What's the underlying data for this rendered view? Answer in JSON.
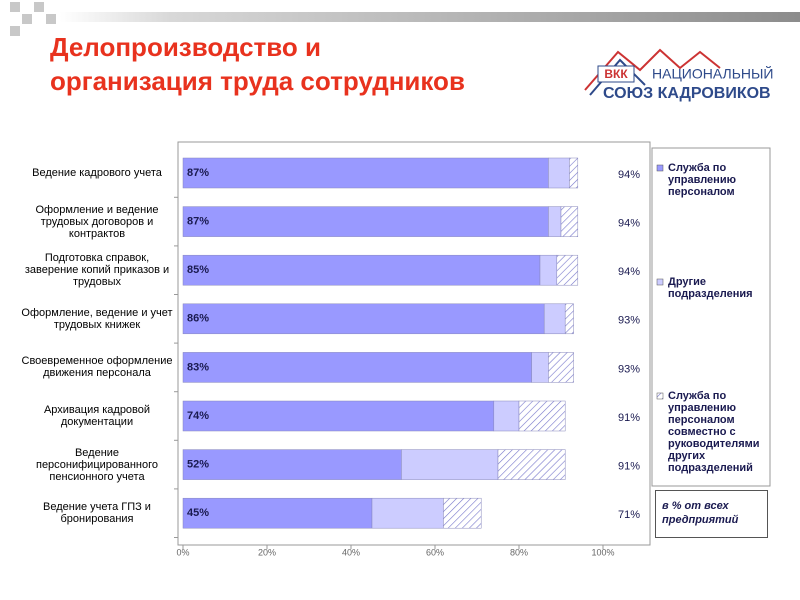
{
  "header": {
    "title": "Делопроизводство и\nорганизация труда сотрудников",
    "logo_abbr": "ВКК",
    "logo_line1": "НАЦИОНАЛЬНЫЙ",
    "logo_line2": "СОЮЗ КАДРОВИКОВ"
  },
  "chart_data": {
    "type": "stacked_bar",
    "orientation": "horizontal",
    "categories": [
      "Ведение кадрового учета",
      "Оформление и ведение трудовых договоров и контрактов",
      "Подготовка справок, заверение копий приказов и трудовых",
      "Оформление, ведение и учет трудовых книжек",
      "Своевременное оформление движения персонала",
      "Архивация кадровой документации",
      "Ведение персонифицированного пенсионного учета",
      "Ведение учета ГПЗ и бронирования"
    ],
    "series": [
      {
        "name": "Служба по управлению персоналом",
        "color": "#9999ff",
        "values": [
          87,
          87,
          85,
          86,
          83,
          74,
          52,
          45
        ],
        "value_labels": [
          "87%",
          "87%",
          "85%",
          "86%",
          "83%",
          "74%",
          "52%",
          "45%"
        ]
      },
      {
        "name": "Другие подразделения",
        "color": "#ccccff",
        "values": [
          5,
          3,
          4,
          5,
          4,
          6,
          23,
          17
        ]
      },
      {
        "name": "Служба по управлению персоналом совместно с руководителями других подразделений",
        "color": "#7777cc",
        "pattern": "hatch",
        "values": [
          2,
          4,
          5,
          2,
          6,
          11,
          16,
          9
        ]
      }
    ],
    "totals": [
      94,
      94,
      94,
      93,
      93,
      91,
      91,
      71
    ],
    "total_labels": [
      "94%",
      "94%",
      "94%",
      "93%",
      "93%",
      "91%",
      "91%",
      "71%"
    ],
    "xlim": [
      0,
      100
    ],
    "xticks": [
      {
        "value": 0,
        "label": "0%"
      },
      {
        "value": 20,
        "label": "20%"
      },
      {
        "value": 40,
        "label": "40%"
      },
      {
        "value": 60,
        "label": "60%"
      },
      {
        "value": 80,
        "label": "80%"
      },
      {
        "value": 100,
        "label": "100%"
      }
    ],
    "note": "в % от всех предприятий"
  }
}
